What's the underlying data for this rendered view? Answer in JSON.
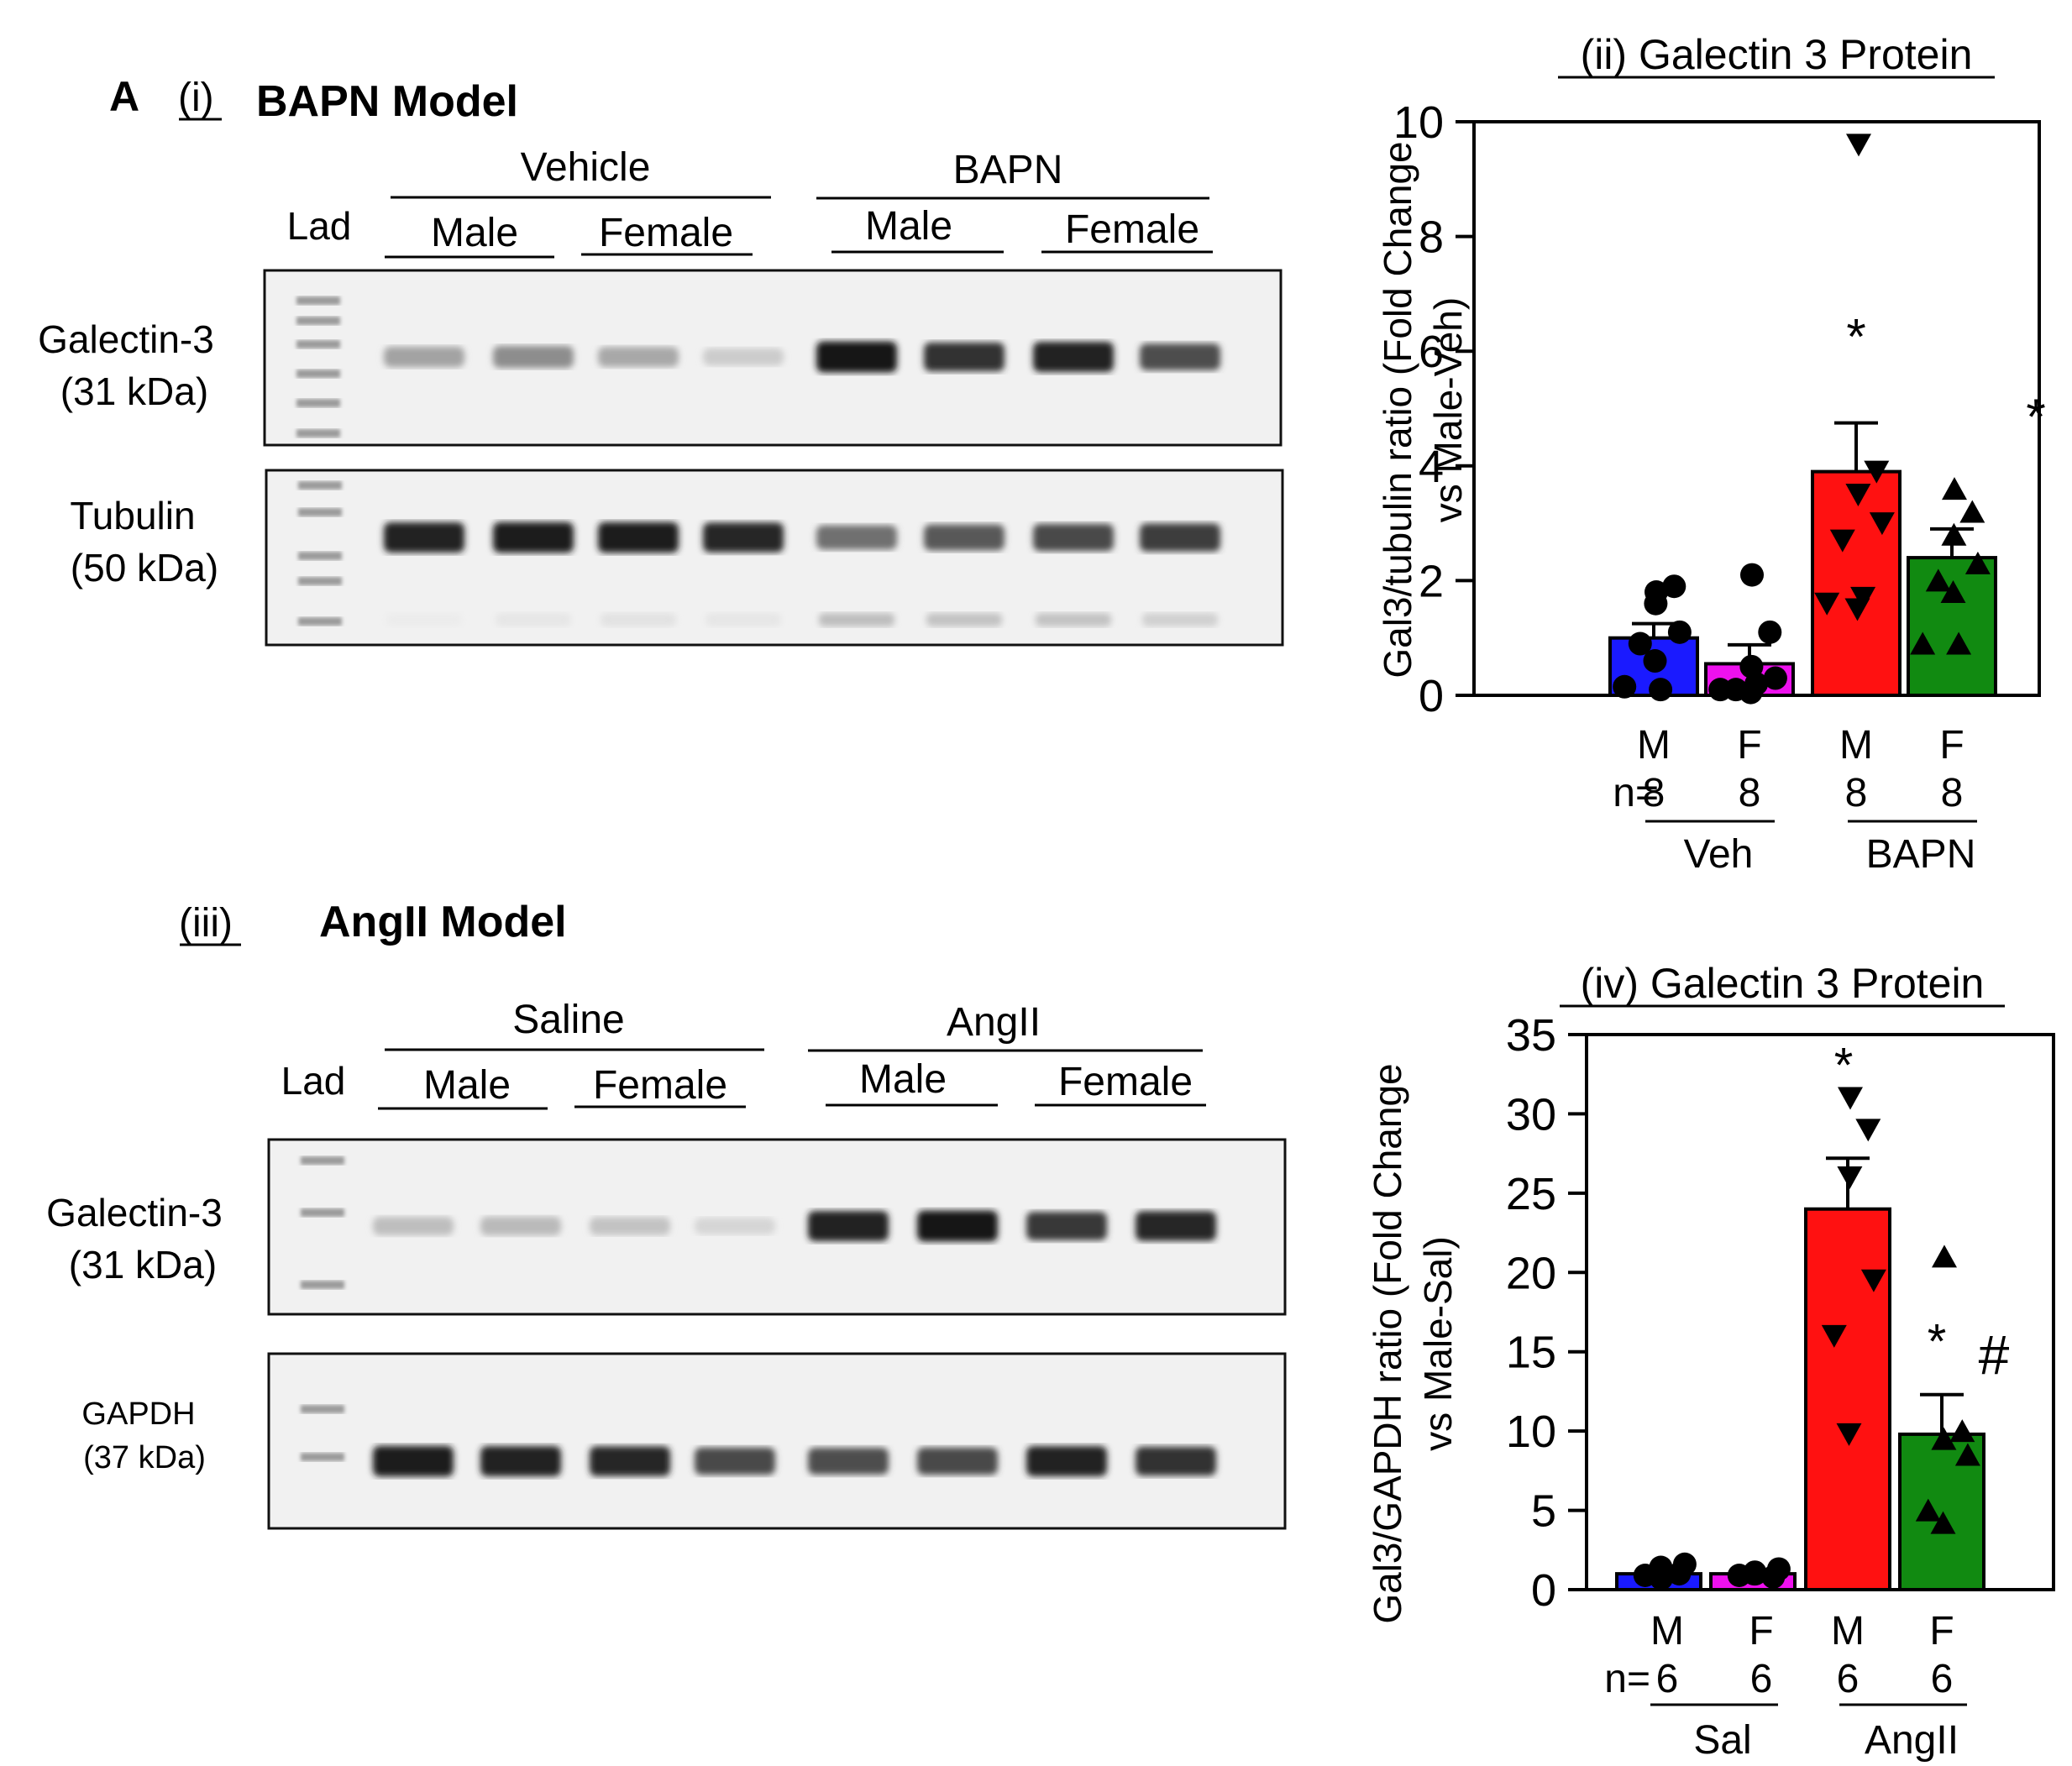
{
  "figure_letter": "A",
  "panel_i": {
    "roman": "(i)",
    "title": "BAPN Model",
    "lad_label": "Lad",
    "groups": [
      "Vehicle",
      "BAPN"
    ],
    "subgroups": [
      "Male",
      "Female",
      "Male",
      "Female"
    ],
    "blot_top": {
      "protein": "Galectin-3",
      "weight": "(31 kDa)",
      "band_intensity": [
        0.32,
        0.42,
        0.3,
        0.14,
        0.95,
        0.82,
        0.9,
        0.7
      ]
    },
    "blot_bottom": {
      "protein": "Tubulin",
      "weight": "(50 kDa)",
      "band_intensity": [
        0.9,
        0.92,
        0.92,
        0.88,
        0.55,
        0.65,
        0.72,
        0.78
      ]
    }
  },
  "panel_iii": {
    "roman": "(iii)",
    "title": "AngII Model",
    "lad_label": "Lad",
    "groups": [
      "Saline",
      "AngII"
    ],
    "subgroups": [
      "Male",
      "Female",
      "Male",
      "Female"
    ],
    "blot_top": {
      "protein": "Galectin-3",
      "weight": "(31 kDa)",
      "band_intensity": [
        0.2,
        0.22,
        0.18,
        0.1,
        0.9,
        0.95,
        0.8,
        0.88
      ]
    },
    "blot_bottom": {
      "protein": "GAPDH",
      "weight": "(37 kDa)",
      "band_intensity": [
        0.92,
        0.9,
        0.88,
        0.72,
        0.7,
        0.72,
        0.9,
        0.82
      ]
    }
  },
  "chart_data": [
    {
      "type": "bar",
      "title": "(ii) Galectin 3 Protein",
      "ylabel": [
        "Gal3/tubulin ratio (Fold Change",
        "vs Male-Veh)"
      ],
      "ylim": [
        0,
        10
      ],
      "yticks": [
        0,
        2,
        4,
        6,
        8,
        10
      ],
      "categories": [
        "M",
        "F",
        "M",
        "F"
      ],
      "n_prefix": "n=",
      "n_values": [
        "8",
        "8",
        "8",
        "8"
      ],
      "groups": [
        {
          "label": "Veh",
          "members": [
            0,
            1
          ]
        },
        {
          "label": "BAPN",
          "members": [
            2,
            3
          ]
        }
      ],
      "values": [
        1.0,
        0.55,
        3.9,
        2.4
      ],
      "errors": [
        0.25,
        0.33,
        0.85,
        0.5
      ],
      "colors": [
        "#1a1aff",
        "#ee11ee",
        "#ff1111",
        "#118a11"
      ],
      "markers": [
        "circle",
        "circle",
        "triangle-down",
        "triangle-up"
      ],
      "points": [
        [
          1.8,
          1.9,
          1.6,
          1.1,
          0.9,
          0.6,
          0.15,
          0.1
        ],
        [
          2.1,
          1.1,
          0.5,
          0.3,
          0.1,
          0.05,
          0.1,
          0.2
        ],
        [
          9.6,
          3.9,
          3.5,
          3.0,
          2.7,
          1.5,
          1.6,
          1.7
        ],
        [
          3.6,
          3.2,
          2.8,
          2.3,
          2.0,
          1.8,
          0.9,
          0.9
        ]
      ],
      "annotations": [
        {
          "bar": 2,
          "text": "*"
        },
        {
          "bar": 3,
          "text": "*"
        }
      ]
    },
    {
      "type": "bar",
      "title": "(iv) Galectin 3 Protein",
      "ylabel": [
        "Gal3/GAPDH ratio (Fold Change",
        "vs Male-Sal)"
      ],
      "ylim": [
        0,
        35
      ],
      "yticks": [
        0,
        5,
        10,
        15,
        20,
        25,
        30,
        35
      ],
      "categories": [
        "M",
        "F",
        "M",
        "F"
      ],
      "n_prefix": "n=",
      "n_values": [
        "6",
        "6",
        "6",
        "6"
      ],
      "groups": [
        {
          "label": "Sal",
          "members": [
            0,
            1
          ]
        },
        {
          "label": "AngII",
          "members": [
            2,
            3
          ]
        }
      ],
      "values": [
        1.0,
        1.0,
        24.0,
        9.8
      ],
      "errors": [
        0.3,
        0.2,
        3.2,
        2.5
      ],
      "colors": [
        "#1a1aff",
        "#ee11ee",
        "#ff1111",
        "#118a11"
      ],
      "markers": [
        "circle",
        "circle",
        "triangle-down",
        "triangle-up"
      ],
      "points": [
        [
          0.7,
          1.0,
          1.4,
          1.6,
          0.9,
          1.2
        ],
        [
          1.0,
          0.8,
          1.1,
          1.3,
          0.9,
          1.0
        ],
        [
          31.0,
          29.0,
          26.0,
          19.5,
          16.0,
          9.8
        ],
        [
          21.0,
          10.0,
          9.5,
          8.5,
          5.0,
          4.2
        ]
      ],
      "annotations": [
        {
          "bar": 2,
          "text": "*"
        },
        {
          "bar": 3,
          "text": "*"
        },
        {
          "bar": 3,
          "text": "#"
        }
      ]
    }
  ]
}
